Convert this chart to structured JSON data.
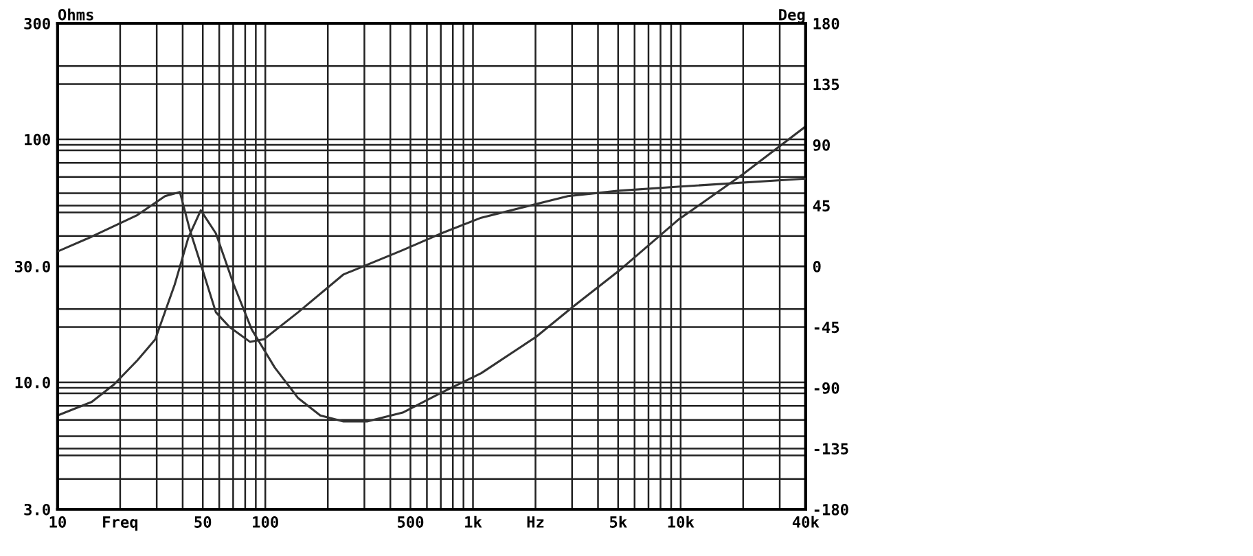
{
  "chart_data": {
    "type": "line",
    "ylabel": "Ohms",
    "y2label": "Deg",
    "series": [
      {
        "color": "#333333",
        "axis": "y",
        "x": [
          10,
          14.6,
          18.7,
          24.2,
          29.5,
          36.6,
          42.6,
          48.9,
          57.8,
          70.5,
          86,
          111,
          144,
          184,
          238,
          309,
          459,
          693,
          1096,
          2018,
          3041,
          5030,
          9700,
          19860,
          40000
        ],
        "values": [
          7.3,
          8.3,
          9.8,
          12.3,
          15.0,
          25.2,
          39.4,
          51,
          41,
          25.2,
          16.5,
          11.5,
          8.6,
          7.3,
          6.9,
          6.9,
          7.5,
          9.0,
          10.9,
          15.4,
          20.5,
          28.7,
          46.5,
          71.6,
          113
        ]
      },
      {
        "color": "#333333",
        "axis": "y2",
        "x": [
          10,
          14.6,
          24.2,
          32.9,
          38.8,
          43.3,
          49.5,
          57.8,
          67.3,
          84.5,
          98.4,
          144,
          238,
          459,
          693,
          1096,
          2864,
          5030,
          9700,
          40000
        ],
        "values": [
          11,
          22,
          38,
          52,
          55,
          27,
          -1,
          -34,
          -45,
          -56,
          -54,
          -34,
          -6,
          12,
          24,
          36,
          52,
          56,
          59,
          65
        ]
      }
    ],
    "log": "xy",
    "xlim": [
      10,
      40000
    ],
    "xticks": [
      10,
      {
        "value": 20,
        "label": "Freq"
      },
      50,
      100,
      500,
      {
        "value": 1000,
        "label": "1k"
      },
      {
        "value": 2000,
        "label": "Hz"
      },
      {
        "value": 5000,
        "label": "5k"
      },
      {
        "value": 10000,
        "label": "10k"
      },
      {
        "value": 40000,
        "label": "40k"
      }
    ],
    "ylim": [
      3,
      300
    ],
    "yticks": [
      {
        "value": 3,
        "label": "3.0"
      },
      {
        "value": 10,
        "label": "10.0"
      },
      {
        "value": 30,
        "label": "30.0"
      },
      100,
      300
    ],
    "y2lim": [
      -180,
      180
    ],
    "y2ticks": [
      -180,
      -135,
      -90,
      -45,
      0,
      45,
      90,
      135,
      180
    ],
    "grid": true,
    "marker": "none",
    "line_style": "solid"
  }
}
